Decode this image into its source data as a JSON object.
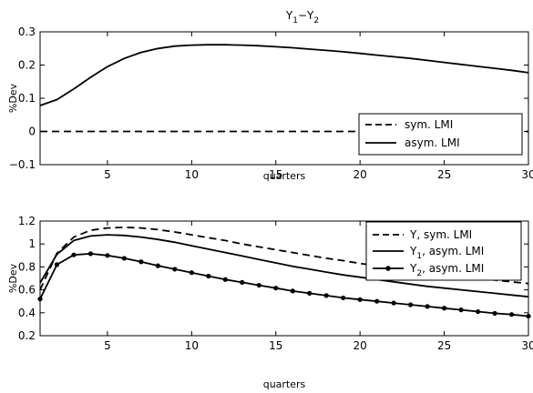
{
  "chart_data": [
    {
      "type": "line",
      "title": "Y1−Y2",
      "title_parts": {
        "base1": "Y",
        "sub1": "1",
        "sep": "−",
        "base2": "Y",
        "sub2": "2"
      },
      "xlabel": "quarters",
      "ylabel": "%Dev",
      "xlim": [
        1,
        30
      ],
      "ylim": [
        -0.1,
        0.3
      ],
      "xticks": [
        5,
        10,
        15,
        20,
        25,
        30
      ],
      "yticks": [
        -0.1,
        0,
        0.1,
        0.2,
        0.3
      ],
      "ytick_labels": [
        "−0.1",
        "0",
        "0.1",
        "0.2",
        "0.3"
      ],
      "grid": false,
      "legend_position": "bottom-right",
      "series": [
        {
          "name": "sym. LMI",
          "style": "dashed",
          "x": [
            1,
            30
          ],
          "y": [
            0,
            0
          ]
        },
        {
          "name": "asym. LMI",
          "style": "solid",
          "x": [
            1,
            2,
            3,
            4,
            5,
            6,
            7,
            8,
            9,
            10,
            11,
            12,
            13,
            14,
            15,
            16,
            17,
            18,
            19,
            20,
            21,
            22,
            23,
            24,
            25,
            26,
            27,
            28,
            29,
            30
          ],
          "y": [
            0.078,
            0.096,
            0.128,
            0.163,
            0.195,
            0.22,
            0.238,
            0.25,
            0.257,
            0.26,
            0.261,
            0.261,
            0.26,
            0.258,
            0.255,
            0.252,
            0.248,
            0.244,
            0.24,
            0.235,
            0.23,
            0.225,
            0.22,
            0.214,
            0.208,
            0.202,
            0.196,
            0.19,
            0.184,
            0.177
          ]
        }
      ]
    },
    {
      "type": "line",
      "title": "",
      "xlabel": "quarters",
      "ylabel": "%Dev",
      "xlim": [
        1,
        30
      ],
      "ylim": [
        0.2,
        1.2
      ],
      "xticks": [
        5,
        10,
        15,
        20,
        25,
        30
      ],
      "yticks": [
        0.2,
        0.4,
        0.6,
        0.8,
        1,
        1.2
      ],
      "ytick_labels": [
        "0.2",
        "0.4",
        "0.6",
        "0.8",
        "1",
        "1.2"
      ],
      "grid": false,
      "legend_position": "top-right",
      "series": [
        {
          "name": "Y, sym. LMI",
          "name_parts": {
            "base": "Y",
            "sub": "",
            "rest": ", sym. LMI"
          },
          "style": "dashed",
          "x": [
            1,
            2,
            3,
            4,
            5,
            6,
            7,
            8,
            9,
            10,
            11,
            12,
            13,
            14,
            15,
            16,
            17,
            18,
            19,
            20,
            21,
            22,
            23,
            24,
            25,
            26,
            27,
            28,
            29,
            30
          ],
          "y": [
            0.6,
            0.92,
            1.06,
            1.12,
            1.14,
            1.145,
            1.14,
            1.125,
            1.105,
            1.08,
            1.055,
            1.03,
            1.0,
            0.975,
            0.95,
            0.925,
            0.9,
            0.875,
            0.855,
            0.83,
            0.81,
            0.79,
            0.77,
            0.75,
            0.735,
            0.72,
            0.7,
            0.685,
            0.67,
            0.655
          ]
        },
        {
          "name": "Y1, asym. LMI",
          "name_parts": {
            "base": "Y",
            "sub": "1",
            "rest": ", asym. LMI"
          },
          "style": "solid",
          "x": [
            1,
            2,
            3,
            4,
            5,
            6,
            7,
            8,
            9,
            10,
            11,
            12,
            13,
            14,
            15,
            16,
            17,
            18,
            19,
            20,
            21,
            22,
            23,
            24,
            25,
            26,
            27,
            28,
            29,
            30
          ],
          "y": [
            0.66,
            0.91,
            1.03,
            1.07,
            1.08,
            1.075,
            1.06,
            1.04,
            1.015,
            0.985,
            0.955,
            0.925,
            0.895,
            0.865,
            0.835,
            0.805,
            0.78,
            0.755,
            0.73,
            0.71,
            0.69,
            0.67,
            0.65,
            0.63,
            0.615,
            0.6,
            0.585,
            0.57,
            0.555,
            0.54
          ]
        },
        {
          "name": "Y2, asym. LMI",
          "name_parts": {
            "base": "Y",
            "sub": "2",
            "rest": ", asym. LMI"
          },
          "style": "solid-dots",
          "x": [
            1,
            2,
            3,
            4,
            5,
            6,
            7,
            8,
            9,
            10,
            11,
            12,
            13,
            14,
            15,
            16,
            17,
            18,
            19,
            20,
            21,
            22,
            23,
            24,
            25,
            26,
            27,
            28,
            29,
            30
          ],
          "y": [
            0.52,
            0.82,
            0.905,
            0.915,
            0.9,
            0.875,
            0.845,
            0.81,
            0.78,
            0.75,
            0.72,
            0.69,
            0.665,
            0.64,
            0.615,
            0.59,
            0.57,
            0.55,
            0.53,
            0.515,
            0.5,
            0.485,
            0.47,
            0.455,
            0.44,
            0.425,
            0.41,
            0.395,
            0.385,
            0.37
          ]
        }
      ]
    }
  ]
}
